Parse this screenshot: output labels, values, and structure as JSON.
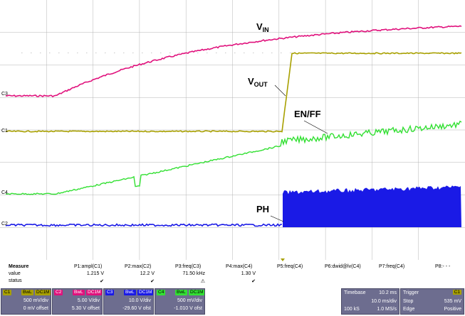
{
  "scope": {
    "bg_color": "#ffffff",
    "grid_color": "#b4b4b4",
    "channels": {
      "vin": {
        "marker": "C3",
        "color": "#e0117c"
      },
      "vout": {
        "marker": "C1",
        "color": "#a8a000"
      },
      "enff": {
        "marker": "C4",
        "color": "#33e033"
      },
      "ph": {
        "marker": "C2",
        "color": "#1a1ae6"
      }
    },
    "annotations": {
      "vin_main": "V",
      "vin_sub": "IN",
      "vout_main": "V",
      "vout_sub": "OUT",
      "enff": "EN/FF",
      "ph": "PH"
    }
  },
  "measure": {
    "headers": [
      "Measure",
      "P1:ampl(C1)",
      "P2:max(C2)",
      "P3:freq(C3)",
      "P4:max(C4)",
      "P5:freq(C4)",
      "P6:dwid@lv(C4)",
      "P7:freq(C4)",
      "P8:- - -"
    ],
    "value_label": "value",
    "values": [
      "1.215 V",
      "12.2 V",
      "71.50 kHz",
      "1.30 V"
    ],
    "status_label": "status",
    "statuses": [
      "✔",
      "✔",
      "⚠",
      "✔"
    ]
  },
  "channels_bar": [
    {
      "tag": "C1",
      "bw": "BwL",
      "coupling": "DC1M",
      "vdiv": "500 mV/div",
      "offset": "0 mV offset",
      "color": "#a8a000"
    },
    {
      "tag": "C2",
      "bw": "BwL",
      "coupling": "DC1M",
      "vdiv": "5.00 V/div",
      "offset": "5.30 V offset",
      "color": "#e0117c"
    },
    {
      "tag": "C3",
      "bw": "BwL",
      "coupling": "DC1M",
      "vdiv": "10.0 V/div",
      "offset": "-29.60 V ofst",
      "color": "#1a1ae6"
    },
    {
      "tag": "C4",
      "bw": "BwL",
      "coupling": "DC1M",
      "vdiv": "500 mV/div",
      "offset": "-1.010 V ofst",
      "color": "#33e033"
    }
  ],
  "timebase": {
    "label": "Timebase",
    "value": "10.2 ms",
    "div": "10.0 ms/div",
    "samples": "100 kS",
    "rate": "1.0 MS/s"
  },
  "trigger": {
    "label": "Trigger",
    "channel": "C1",
    "mode": "Stop",
    "level": "535 mV",
    "type": "Edge",
    "slope": "Positive"
  }
}
